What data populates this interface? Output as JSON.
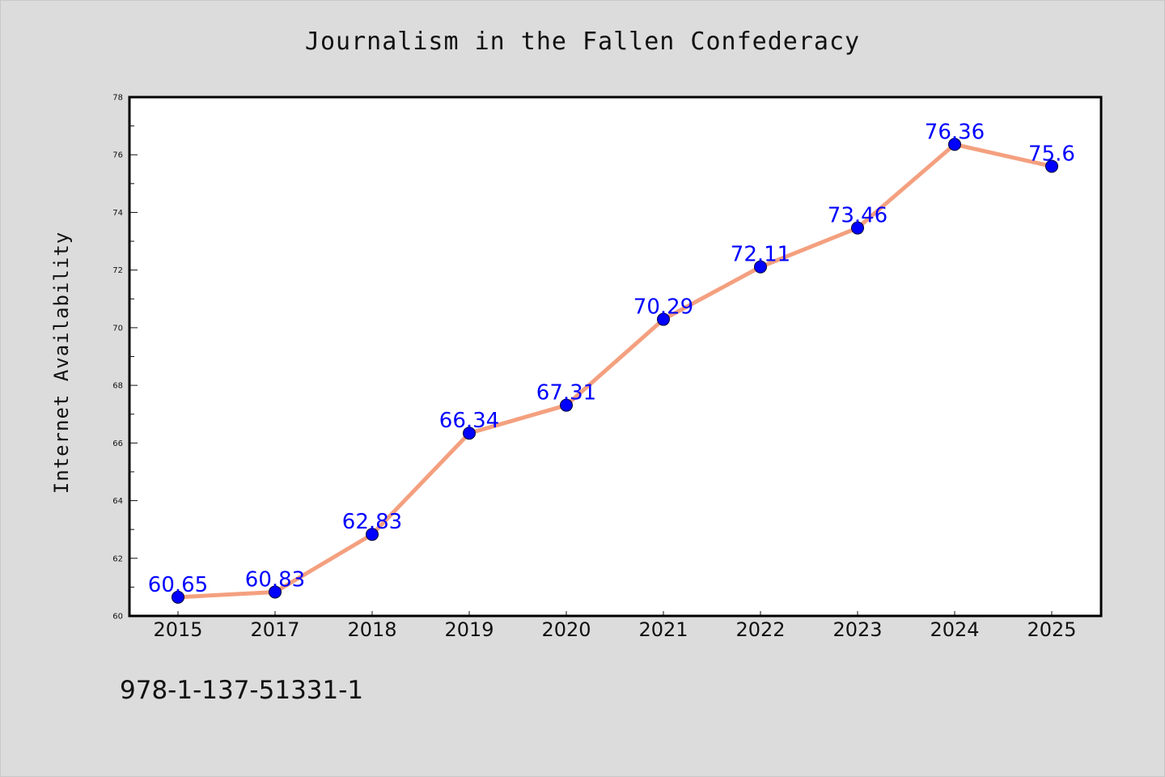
{
  "chart_data": {
    "type": "line",
    "title": "Journalism in the Fallen Confederacy",
    "xlabel": "",
    "ylabel": "Internet Availability",
    "categories": [
      "2015",
      "2017",
      "2018",
      "2019",
      "2020",
      "2021",
      "2022",
      "2023",
      "2024",
      "2025"
    ],
    "series": [
      {
        "values": [
          60.65,
          60.83,
          62.83,
          66.34,
          67.31,
          70.29,
          72.11,
          73.46,
          76.36,
          75.6
        ],
        "labels": [
          "60.65",
          "60.83",
          "62.83",
          "66.34",
          "67.31",
          "70.29",
          "72.11",
          "73.46",
          "76.36",
          "75.6"
        ]
      }
    ],
    "ylim": [
      60,
      78
    ],
    "yticks": [
      "60",
      "62",
      "64",
      "66",
      "68",
      "70",
      "72",
      "74",
      "76",
      "78"
    ],
    "grid": false,
    "line_color": "#f4a07f",
    "marker_color": "#0000ff",
    "label_color": "#0000ff"
  },
  "footnote": "978-1-137-51331-1"
}
